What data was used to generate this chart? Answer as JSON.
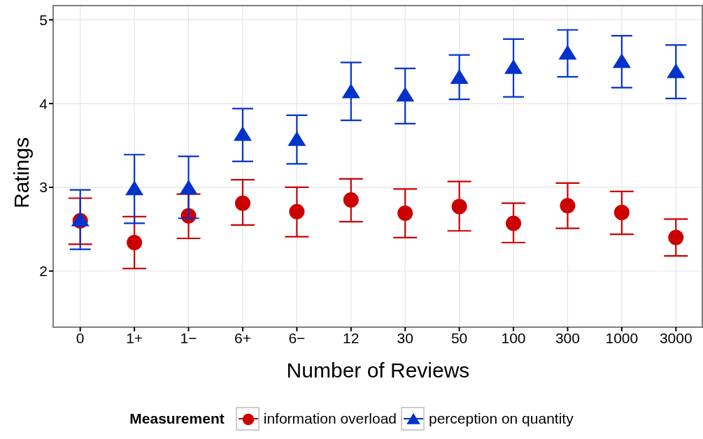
{
  "chart_data": {
    "type": "scatter",
    "xlabel": "Number of Reviews",
    "ylabel": "Ratings",
    "legend_title": "Measurement",
    "legend": "bottom",
    "grid": true,
    "categories": [
      "0",
      "1+",
      "1−",
      "6+",
      "6−",
      "12",
      "30",
      "50",
      "100",
      "300",
      "1000",
      "3000"
    ],
    "ylim": [
      1.33,
      5.17
    ],
    "yticks": [
      2,
      3,
      4,
      5
    ],
    "series": [
      {
        "name": "information overload",
        "color": "#cc0000",
        "marker": "circle",
        "values": [
          2.6,
          2.34,
          2.66,
          2.81,
          2.71,
          2.85,
          2.69,
          2.77,
          2.57,
          2.78,
          2.7,
          2.4
        ],
        "errors": [
          [
            2.32,
            2.87
          ],
          [
            2.03,
            2.65
          ],
          [
            2.39,
            2.92
          ],
          [
            2.55,
            3.09
          ],
          [
            2.41,
            3.0
          ],
          [
            2.59,
            3.1
          ],
          [
            2.4,
            2.98
          ],
          [
            2.48,
            3.07
          ],
          [
            2.34,
            2.81
          ],
          [
            2.51,
            3.05
          ],
          [
            2.44,
            2.95
          ],
          [
            2.18,
            2.62
          ]
        ]
      },
      {
        "name": "perception on quantity",
        "color": "#0033cc",
        "marker": "triangle",
        "values": [
          2.61,
          2.98,
          2.99,
          3.63,
          3.57,
          4.14,
          4.1,
          4.31,
          4.43,
          4.6,
          4.5,
          4.38
        ],
        "errors": [
          [
            2.26,
            2.97
          ],
          [
            2.57,
            3.39
          ],
          [
            2.63,
            3.37
          ],
          [
            3.31,
            3.94
          ],
          [
            3.28,
            3.86
          ],
          [
            3.8,
            4.49
          ],
          [
            3.76,
            4.42
          ],
          [
            4.05,
            4.58
          ],
          [
            4.08,
            4.77
          ],
          [
            4.32,
            4.88
          ],
          [
            4.19,
            4.81
          ],
          [
            4.06,
            4.7
          ]
        ]
      }
    ]
  }
}
